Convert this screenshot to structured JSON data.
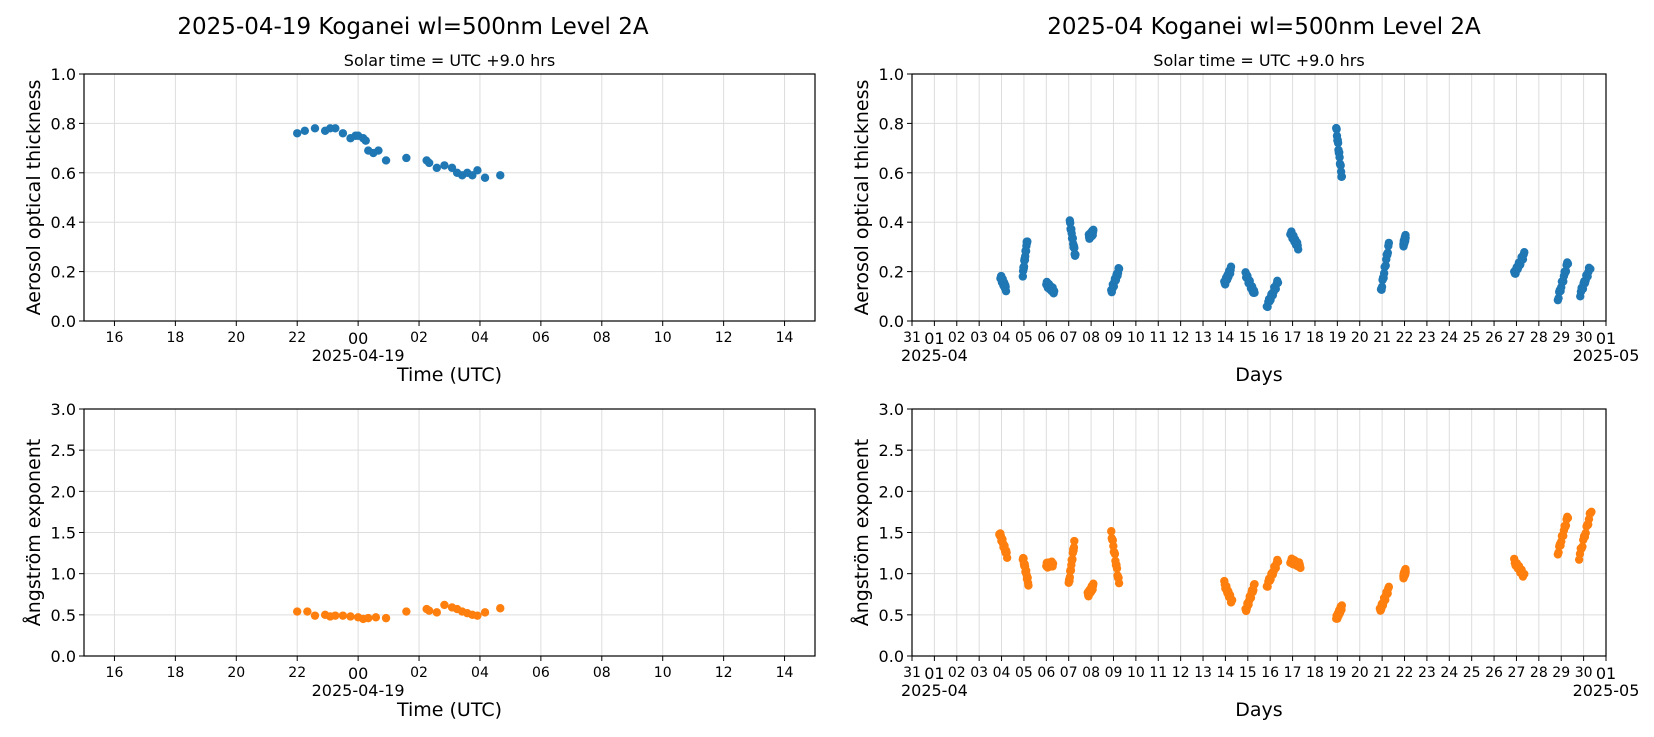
{
  "figure": {
    "left_title": "2025-04-19  Koganei  wl=500nm  Level 2A",
    "right_title": "2025-04  Koganei  wl=500nm  Level 2A"
  },
  "chart_data": [
    {
      "id": "daily_aot",
      "type": "scatter",
      "subtitle": "Solar time = UTC +9.0 hrs",
      "xlabel": "Time (UTC)",
      "ylabel": "Aerosol optical thickness",
      "xlim": [
        "2025-04-18 15:00",
        "2025-04-19 15:00"
      ],
      "ylim": [
        0,
        1.0
      ],
      "y_ticks": [
        "0.0",
        "0.2",
        "0.4",
        "0.6",
        "0.8",
        "1.0"
      ],
      "x_ticks": [
        "16",
        "18",
        "20",
        "22",
        "00",
        "02",
        "04",
        "06",
        "08",
        "10",
        "12",
        "14"
      ],
      "x_date_label": "2025-04-19",
      "grid": true,
      "color": "#1f77b4",
      "points": [
        [
          "2025-04-18 22:00",
          0.76
        ],
        [
          "2025-04-18 22:15",
          0.77
        ],
        [
          "2025-04-18 22:35",
          0.78
        ],
        [
          "2025-04-18 22:55",
          0.77
        ],
        [
          "2025-04-18 23:05",
          0.78
        ],
        [
          "2025-04-18 23:15",
          0.78
        ],
        [
          "2025-04-18 23:30",
          0.76
        ],
        [
          "2025-04-18 23:45",
          0.74
        ],
        [
          "2025-04-18 23:55",
          0.75
        ],
        [
          "2025-04-19 00:00",
          0.75
        ],
        [
          "2025-04-19 00:10",
          0.74
        ],
        [
          "2025-04-19 00:15",
          0.73
        ],
        [
          "2025-04-19 00:20",
          0.69
        ],
        [
          "2025-04-19 00:30",
          0.68
        ],
        [
          "2025-04-19 00:40",
          0.69
        ],
        [
          "2025-04-19 00:55",
          0.65
        ],
        [
          "2025-04-19 01:35",
          0.66
        ],
        [
          "2025-04-19 02:15",
          0.65
        ],
        [
          "2025-04-19 02:20",
          0.64
        ],
        [
          "2025-04-19 02:35",
          0.62
        ],
        [
          "2025-04-19 02:50",
          0.63
        ],
        [
          "2025-04-19 03:05",
          0.62
        ],
        [
          "2025-04-19 03:15",
          0.6
        ],
        [
          "2025-04-19 03:25",
          0.59
        ],
        [
          "2025-04-19 03:35",
          0.6
        ],
        [
          "2025-04-19 03:45",
          0.59
        ],
        [
          "2025-04-19 03:55",
          0.61
        ],
        [
          "2025-04-19 04:10",
          0.58
        ],
        [
          "2025-04-19 04:40",
          0.59
        ]
      ]
    },
    {
      "id": "monthly_aot",
      "type": "scatter",
      "subtitle": "Solar time = UTC +9.0 hrs",
      "xlabel": "Days",
      "ylabel": "Aerosol optical thickness",
      "xlim": [
        "2025-03-31",
        "2025-05-01"
      ],
      "ylim": [
        0,
        1.0
      ],
      "y_ticks": [
        "0.0",
        "0.2",
        "0.4",
        "0.6",
        "0.8",
        "1.0"
      ],
      "x_ticks": [
        "31",
        "01",
        "02",
        "03",
        "04",
        "05",
        "06",
        "07",
        "08",
        "09",
        "10",
        "11",
        "12",
        "13",
        "14",
        "15",
        "16",
        "17",
        "18",
        "19",
        "20",
        "21",
        "22",
        "23",
        "24",
        "25",
        "26",
        "27",
        "28",
        "29",
        "30",
        "01"
      ],
      "x_month_labels": [
        [
          "2025-04-01",
          "2025-04"
        ],
        [
          "2025-05-01",
          "2025-05"
        ]
      ],
      "grid": true,
      "color": "#1f77b4",
      "clusters": [
        {
          "day": "2025-04-04",
          "x0": 3.95,
          "x1": 4.2,
          "y0": 0.18,
          "y1": 0.13
        },
        {
          "day": "2025-04-05",
          "x0": 4.95,
          "x1": 5.15,
          "y0": 0.19,
          "y1": 0.33
        },
        {
          "day": "2025-04-06",
          "x0": 6.0,
          "x1": 6.35,
          "y0": 0.15,
          "y1": 0.12
        },
        {
          "day": "2025-04-07",
          "x0": 7.05,
          "x1": 7.3,
          "y0": 0.4,
          "y1": 0.26
        },
        {
          "day": "2025-04-08",
          "x0": 7.9,
          "x1": 8.1,
          "y0": 0.34,
          "y1": 0.36
        },
        {
          "day": "2025-04-09",
          "x0": 8.9,
          "x1": 9.25,
          "y0": 0.12,
          "y1": 0.21
        },
        {
          "day": "2025-04-14",
          "x0": 13.95,
          "x1": 14.25,
          "y0": 0.15,
          "y1": 0.21
        },
        {
          "day": "2025-04-15",
          "x0": 14.9,
          "x1": 15.3,
          "y0": 0.19,
          "y1": 0.11
        },
        {
          "day": "2025-04-16",
          "x0": 15.85,
          "x1": 16.35,
          "y0": 0.06,
          "y1": 0.16
        },
        {
          "day": "2025-04-17",
          "x0": 16.9,
          "x1": 17.25,
          "y0": 0.36,
          "y1": 0.3
        },
        {
          "day": "2025-04-19",
          "x0": 18.95,
          "x1": 19.2,
          "y0": 0.78,
          "y1": 0.58
        },
        {
          "day": "2025-04-21",
          "x0": 20.95,
          "x1": 21.3,
          "y0": 0.12,
          "y1": 0.31
        },
        {
          "day": "2025-04-22",
          "x0": 21.95,
          "x1": 22.05,
          "y0": 0.31,
          "y1": 0.34
        },
        {
          "day": "2025-04-27",
          "x0": 26.9,
          "x1": 27.35,
          "y0": 0.19,
          "y1": 0.27
        },
        {
          "day": "2025-04-29",
          "x0": 28.85,
          "x1": 29.3,
          "y0": 0.09,
          "y1": 0.24
        },
        {
          "day": "2025-04-30",
          "x0": 29.85,
          "x1": 30.3,
          "y0": 0.11,
          "y1": 0.22
        }
      ]
    },
    {
      "id": "daily_ae",
      "type": "scatter",
      "xlabel": "Time (UTC)",
      "ylabel": "Ångström exponent",
      "xlim": [
        "2025-04-18 15:00",
        "2025-04-19 15:00"
      ],
      "ylim": [
        0,
        3.0
      ],
      "y_ticks": [
        "0.0",
        "0.5",
        "1.0",
        "1.5",
        "2.0",
        "2.5",
        "3.0"
      ],
      "x_ticks": [
        "16",
        "18",
        "20",
        "22",
        "00",
        "02",
        "04",
        "06",
        "08",
        "10",
        "12",
        "14"
      ],
      "x_date_label": "2025-04-19",
      "grid": true,
      "color": "#ff7f0e",
      "points": [
        [
          "2025-04-18 22:00",
          0.54
        ],
        [
          "2025-04-18 22:20",
          0.54
        ],
        [
          "2025-04-18 22:35",
          0.49
        ],
        [
          "2025-04-18 22:55",
          0.5
        ],
        [
          "2025-04-18 23:05",
          0.48
        ],
        [
          "2025-04-18 23:15",
          0.49
        ],
        [
          "2025-04-18 23:30",
          0.49
        ],
        [
          "2025-04-18 23:45",
          0.48
        ],
        [
          "2025-04-19 00:00",
          0.47
        ],
        [
          "2025-04-19 00:10",
          0.45
        ],
        [
          "2025-04-19 00:20",
          0.46
        ],
        [
          "2025-04-19 00:35",
          0.47
        ],
        [
          "2025-04-19 00:55",
          0.46
        ],
        [
          "2025-04-19 01:35",
          0.54
        ],
        [
          "2025-04-19 02:15",
          0.57
        ],
        [
          "2025-04-19 02:20",
          0.55
        ],
        [
          "2025-04-19 02:35",
          0.53
        ],
        [
          "2025-04-19 02:50",
          0.62
        ],
        [
          "2025-04-19 03:05",
          0.59
        ],
        [
          "2025-04-19 03:15",
          0.57
        ],
        [
          "2025-04-19 03:25",
          0.54
        ],
        [
          "2025-04-19 03:35",
          0.52
        ],
        [
          "2025-04-19 03:45",
          0.5
        ],
        [
          "2025-04-19 03:55",
          0.49
        ],
        [
          "2025-04-19 04:10",
          0.53
        ],
        [
          "2025-04-19 04:40",
          0.58
        ]
      ]
    },
    {
      "id": "monthly_ae",
      "type": "scatter",
      "xlabel": "Days",
      "ylabel": "Ångström exponent",
      "xlim": [
        "2025-03-31",
        "2025-05-01"
      ],
      "ylim": [
        0,
        3.0
      ],
      "y_ticks": [
        "0.0",
        "0.5",
        "1.0",
        "1.5",
        "2.0",
        "2.5",
        "3.0"
      ],
      "x_ticks": [
        "31",
        "01",
        "02",
        "03",
        "04",
        "05",
        "06",
        "07",
        "08",
        "09",
        "10",
        "11",
        "12",
        "13",
        "14",
        "15",
        "16",
        "17",
        "18",
        "19",
        "20",
        "21",
        "22",
        "23",
        "24",
        "25",
        "26",
        "27",
        "28",
        "29",
        "30",
        "01"
      ],
      "x_month_labels": [
        [
          "2025-04-01",
          "2025-04"
        ],
        [
          "2025-05-01",
          "2025-05"
        ]
      ],
      "grid": true,
      "color": "#ff7f0e",
      "clusters": [
        {
          "day": "2025-04-04",
          "x0": 3.9,
          "x1": 4.25,
          "y0": 1.5,
          "y1": 1.22
        },
        {
          "day": "2025-04-05",
          "x0": 4.95,
          "x1": 5.2,
          "y0": 1.2,
          "y1": 0.88
        },
        {
          "day": "2025-04-06",
          "x0": 6.0,
          "x1": 6.3,
          "y0": 1.1,
          "y1": 1.12
        },
        {
          "day": "2025-04-07",
          "x0": 7.0,
          "x1": 7.25,
          "y0": 0.87,
          "y1": 1.37
        },
        {
          "day": "2025-04-08",
          "x0": 7.85,
          "x1": 8.1,
          "y0": 0.74,
          "y1": 0.85
        },
        {
          "day": "2025-04-09",
          "x0": 8.9,
          "x1": 9.25,
          "y0": 1.5,
          "y1": 0.88
        },
        {
          "day": "2025-04-14",
          "x0": 13.95,
          "x1": 14.3,
          "y0": 0.88,
          "y1": 0.65
        },
        {
          "day": "2025-04-15",
          "x0": 14.9,
          "x1": 15.3,
          "y0": 0.55,
          "y1": 0.86
        },
        {
          "day": "2025-04-16",
          "x0": 15.85,
          "x1": 16.35,
          "y0": 0.85,
          "y1": 1.16
        },
        {
          "day": "2025-04-17",
          "x0": 16.9,
          "x1": 17.35,
          "y0": 1.16,
          "y1": 1.1
        },
        {
          "day": "2025-04-19",
          "x0": 18.95,
          "x1": 19.2,
          "y0": 0.45,
          "y1": 0.6
        },
        {
          "day": "2025-04-21",
          "x0": 20.9,
          "x1": 21.3,
          "y0": 0.55,
          "y1": 0.82
        },
        {
          "day": "2025-04-22",
          "x0": 21.95,
          "x1": 22.05,
          "y0": 0.97,
          "y1": 1.03
        },
        {
          "day": "2025-04-27",
          "x0": 26.9,
          "x1": 27.35,
          "y0": 1.15,
          "y1": 0.97
        },
        {
          "day": "2025-04-29",
          "x0": 28.85,
          "x1": 29.3,
          "y0": 1.25,
          "y1": 1.7
        },
        {
          "day": "2025-04-30",
          "x0": 29.8,
          "x1": 30.35,
          "y0": 1.2,
          "y1": 1.78
        }
      ]
    }
  ]
}
